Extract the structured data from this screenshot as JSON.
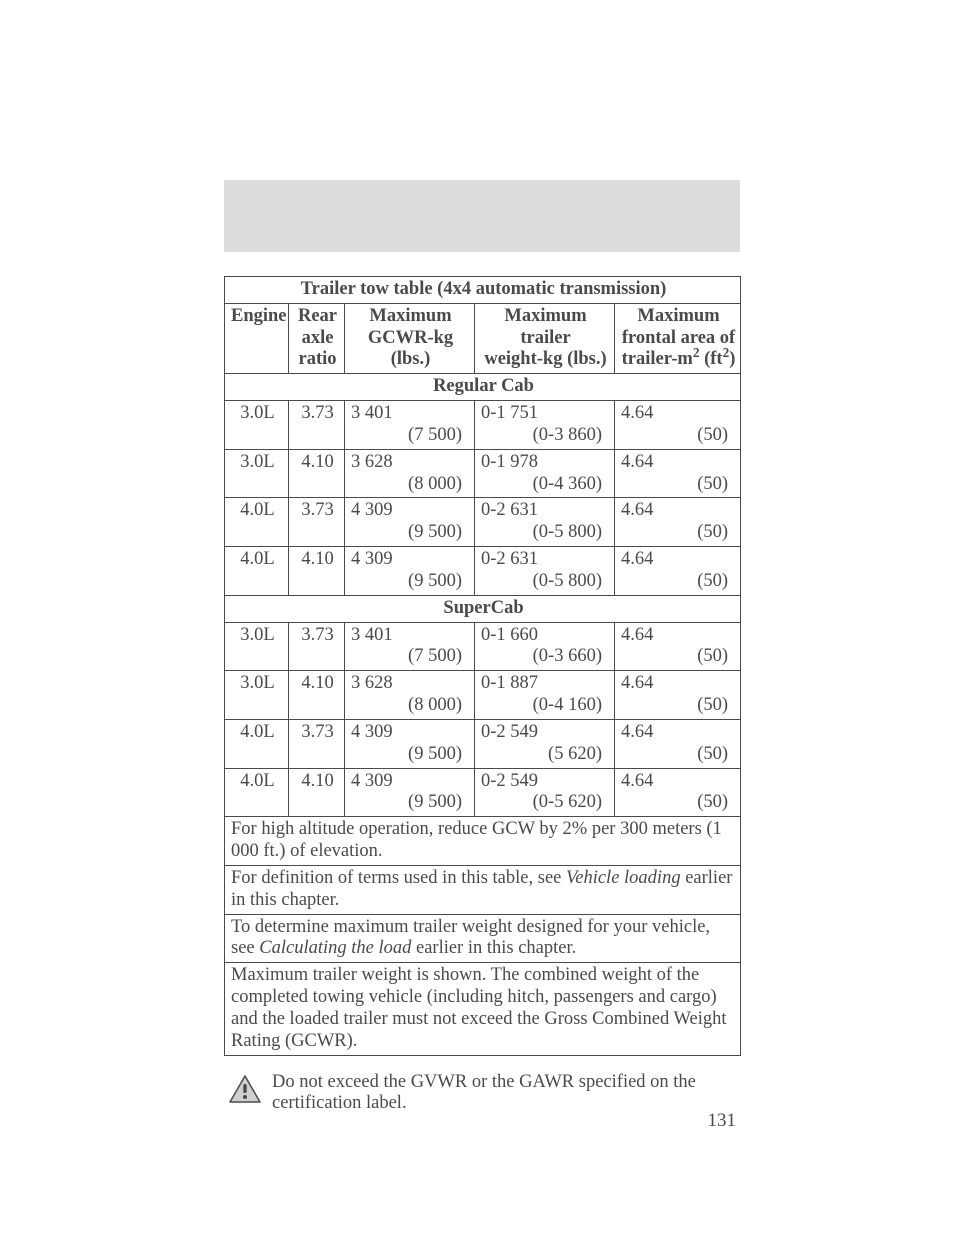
{
  "table": {
    "title": "Trailer tow table (4x4 automatic transmission)",
    "headers": {
      "engine": "Engine",
      "ratio": "Rear\naxle\nratio",
      "gcwr": "Maximum\nGCWR-kg\n(lbs.)",
      "trailer": "Maximum\ntrailer\nweight-kg (lbs.)",
      "frontal_pre": "Maximum\nfrontal area of\ntrailer-m",
      "frontal_sup1": "2",
      "frontal_mid": " (ft",
      "frontal_sup2": "2",
      "frontal_post": ")"
    },
    "sections": [
      {
        "label": "Regular Cab",
        "rows": [
          {
            "engine": "3.0L",
            "ratio": "3.73",
            "gcwr_p": "3 401",
            "gcwr_s": "(7 500)",
            "tw_p": "0-1 751",
            "tw_s": "(0-3 860)",
            "fa_p": "4.64",
            "fa_s": "(50)"
          },
          {
            "engine": "3.0L",
            "ratio": "4.10",
            "gcwr_p": "3 628",
            "gcwr_s": "(8 000)",
            "tw_p": "0-1 978",
            "tw_s": "(0-4 360)",
            "fa_p": "4.64",
            "fa_s": "(50)"
          },
          {
            "engine": "4.0L",
            "ratio": "3.73",
            "gcwr_p": "4 309",
            "gcwr_s": "(9 500)",
            "tw_p": "0-2 631",
            "tw_s": "(0-5 800)",
            "fa_p": "4.64",
            "fa_s": "(50)"
          },
          {
            "engine": "4.0L",
            "ratio": "4.10",
            "gcwr_p": "4 309",
            "gcwr_s": "(9 500)",
            "tw_p": "0-2 631",
            "tw_s": "(0-5 800)",
            "fa_p": "4.64",
            "fa_s": "(50)"
          }
        ]
      },
      {
        "label": "SuperCab",
        "rows": [
          {
            "engine": "3.0L",
            "ratio": "3.73",
            "gcwr_p": "3 401",
            "gcwr_s": "(7 500)",
            "tw_p": "0-1 660",
            "tw_s": "(0-3 660)",
            "fa_p": "4.64",
            "fa_s": "(50)"
          },
          {
            "engine": "3.0L",
            "ratio": "4.10",
            "gcwr_p": "3 628",
            "gcwr_s": "(8 000)",
            "tw_p": "0-1 887",
            "tw_s": "(0-4 160)",
            "fa_p": "4.64",
            "fa_s": "(50)"
          },
          {
            "engine": "4.0L",
            "ratio": "3.73",
            "gcwr_p": "4 309",
            "gcwr_s": "(9 500)",
            "tw_p": "0-2 549",
            "tw_s": "(5 620)",
            "fa_p": "4.64",
            "fa_s": "(50)"
          },
          {
            "engine": "4.0L",
            "ratio": "4.10",
            "gcwr_p": "4 309",
            "gcwr_s": "(9 500)",
            "tw_p": "0-2 549",
            "tw_s": "(0-5 620)",
            "fa_p": "4.64",
            "fa_s": "(50)"
          }
        ]
      }
    ],
    "notes": {
      "n1": "For high altitude operation, reduce GCW by 2% per 300 meters (1 000 ft.) of elevation.",
      "n2a": "For definition of terms used in this table, see ",
      "n2i": "Vehicle loading",
      "n2b": " earlier in this chapter.",
      "n3a": "To determine maximum trailer weight designed for your vehicle, see ",
      "n3i": "Calculating the load",
      "n3b": " earlier in this chapter.",
      "n4": "Maximum trailer weight is shown. The combined weight of the completed towing vehicle (including hitch, passengers and cargo) and the loaded trailer must not exceed the Gross Combined Weight Rating (GCWR)."
    }
  },
  "warning": "Do not exceed the GVWR or the GAWR specified on the certification label.",
  "page_number": "131",
  "colors": {
    "text": "#4a4a4a",
    "border": "#4a4a4a",
    "band": "#dcdcdc",
    "icon_fill": "#d0d0d0",
    "icon_stroke": "#4a4a4a"
  }
}
